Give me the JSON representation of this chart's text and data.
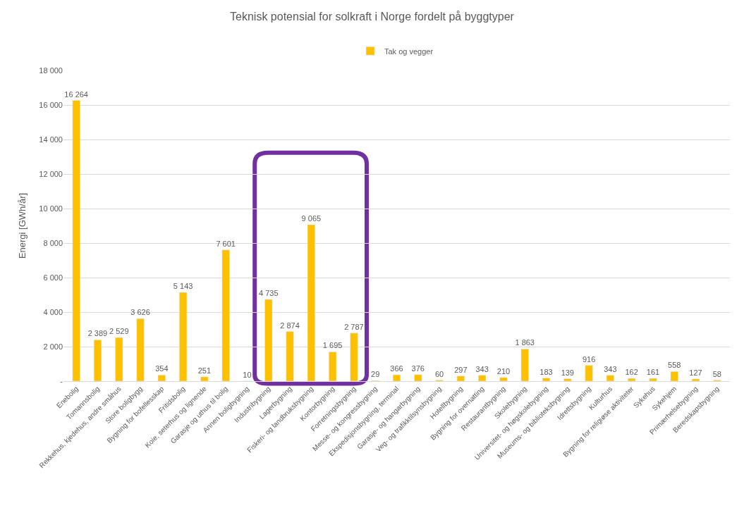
{
  "chart_data": {
    "type": "bar",
    "title": "Teknisk potensial for solkraft i Norge fordelt på byggtyper",
    "ylabel": "Energi [GWh/år]",
    "categories": [
      "Enebolig",
      "Tomannsbolig",
      "Rekkehus, kjedehus, andre småhus",
      "Store boligbygg",
      "Bygning for bofellesskap",
      "Fritidsbolig",
      "Koie, seterhus og lignende",
      "Garasje og uthus til bolig",
      "Annen boligbygning",
      "Industribygning",
      "Lagerbygning",
      "Fiskeri- og landbruksbygning",
      "Kontorbygning",
      "Forretningsbygning",
      "Messe- og kongressbygning",
      "Ekspedisjonsbygning, terminal",
      "Garasje- og hangarbygning",
      "Veg- og trafikktilsynsbygning",
      "Hotellbygning",
      "Bygning for overnatting",
      "Restaurantbygning",
      "Skolebygning",
      "Universitet- og høgskolebygning",
      "Museums- og biblioteksbygning",
      "Idrettsbygning",
      "Kulturhus",
      "Bygning for religiøse aktiviteter",
      "Sykehus",
      "Sykehjem",
      "Primærhelsebygning",
      "Beredskapsbygning"
    ],
    "series": [
      {
        "name": "Tak og vegger",
        "color": "#ffc000",
        "values": [
          16264,
          2389,
          2529,
          3626,
          354,
          5143,
          251,
          7601,
          10,
          4735,
          2874,
          9065,
          1695,
          2787,
          29,
          366,
          376,
          60,
          297,
          343,
          210,
          1863,
          183,
          139,
          916,
          343,
          162,
          161,
          558,
          127,
          58
        ],
        "value_labels": [
          "16 264",
          "2 389",
          "2 529",
          "3 626",
          "354",
          "5 143",
          "251",
          "7 601",
          "10",
          "4 735",
          "2 874",
          "9 065",
          "1 695",
          "2 787",
          "29",
          "366",
          "376",
          "60",
          "297",
          "343",
          "210",
          "1 863",
          "183",
          "139",
          "916",
          "343",
          "162",
          "161",
          "558",
          "127",
          "58"
        ]
      }
    ],
    "ylim": [
      0,
      18000
    ],
    "yticks": [
      {
        "value": 0,
        "label": "-"
      },
      {
        "value": 2000,
        "label": "2 000"
      },
      {
        "value": 4000,
        "label": "4 000"
      },
      {
        "value": 6000,
        "label": "6 000"
      },
      {
        "value": 8000,
        "label": "8 000"
      },
      {
        "value": 10000,
        "label": "10 000"
      },
      {
        "value": 12000,
        "label": "12 000"
      },
      {
        "value": 14000,
        "label": "14 000"
      },
      {
        "value": 16000,
        "label": "16 000"
      },
      {
        "value": 18000,
        "label": "18 000"
      }
    ],
    "grid": "y",
    "legend": "top"
  }
}
